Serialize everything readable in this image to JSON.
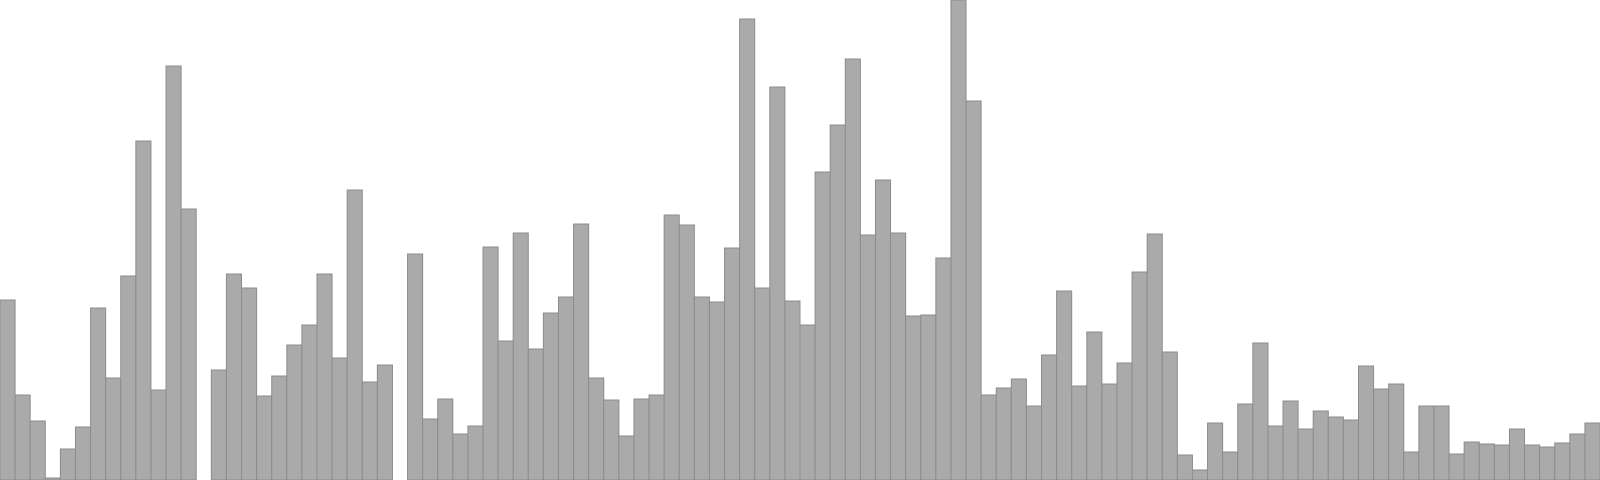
{
  "chart_data": {
    "type": "bar",
    "title": "",
    "xlabel": "",
    "ylabel": "",
    "ylim": [
      0,
      480
    ],
    "grid": false,
    "legend": "none",
    "bar_color": "#aaaaaa",
    "edge_color": "#8c8c8c",
    "values": [
      180,
      85,
      59,
      2,
      31,
      53,
      172,
      102,
      204,
      339,
      90,
      414,
      271,
      0,
      110,
      206,
      192,
      84,
      104,
      135,
      155,
      206,
      122,
      290,
      98,
      115,
      0,
      226,
      61,
      81,
      46,
      54,
      233,
      139,
      247,
      131,
      167,
      183,
      256,
      102,
      80,
      44,
      81,
      85,
      265,
      255,
      183,
      178,
      232,
      461,
      192,
      393,
      179,
      155,
      308,
      355,
      421,
      245,
      300,
      247,
      164,
      165,
      222,
      480,
      379,
      85,
      92,
      101,
      74,
      125,
      189,
      94,
      148,
      96,
      117,
      208,
      246,
      128,
      25,
      10,
      57,
      28,
      76,
      137,
      54,
      79,
      51,
      69,
      63,
      60,
      114,
      91,
      96,
      28,
      74,
      74,
      26,
      38,
      36,
      35,
      51,
      35,
      33,
      37,
      46,
      57
    ]
  }
}
